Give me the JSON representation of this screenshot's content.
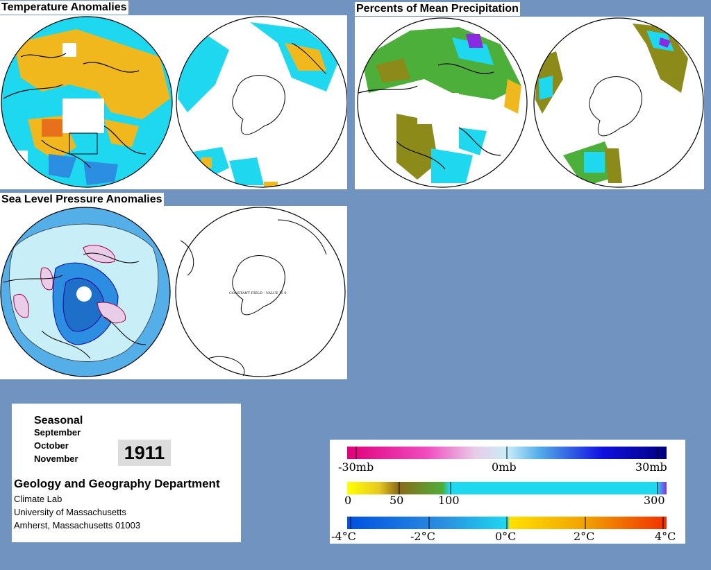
{
  "panels": {
    "temperature": {
      "title": "Temperature Anomalies"
    },
    "precipitation": {
      "title": "Percents of Mean Precipitation"
    },
    "pressure": {
      "title": "Sea Level Pressure Anomalies",
      "constant_field_label": "CONSTANT FIELD - VALUE IS 0"
    }
  },
  "info": {
    "seasonal": "Seasonal",
    "months": [
      "September",
      "October",
      "November"
    ],
    "year": "1911",
    "department": "Geology and Geography Department",
    "address": [
      "Climate Lab",
      "University of Massachusetts",
      "Amherst, Massachusetts 01003"
    ]
  },
  "legend": {
    "pressure": {
      "labels": [
        "-30mb",
        "0mb",
        "30mb"
      ]
    },
    "precipitation": {
      "labels": [
        "0",
        "50",
        "100",
        "300"
      ]
    },
    "temperature": {
      "labels": [
        "-4°C",
        "-2°C",
        "0°C",
        "2°C",
        "4°C"
      ]
    }
  },
  "colors": {
    "background": "#7093c0",
    "cyan": "#1ed8f0",
    "blue": "#2b8ee0",
    "yellow_orange": "#f0b81c",
    "olive": "#8c8a18",
    "green": "#4caf3a",
    "purple": "#8a2be2",
    "magenta": "#e0007a",
    "pale_blue": "#c8eef8",
    "mid_blue": "#54aee8"
  }
}
